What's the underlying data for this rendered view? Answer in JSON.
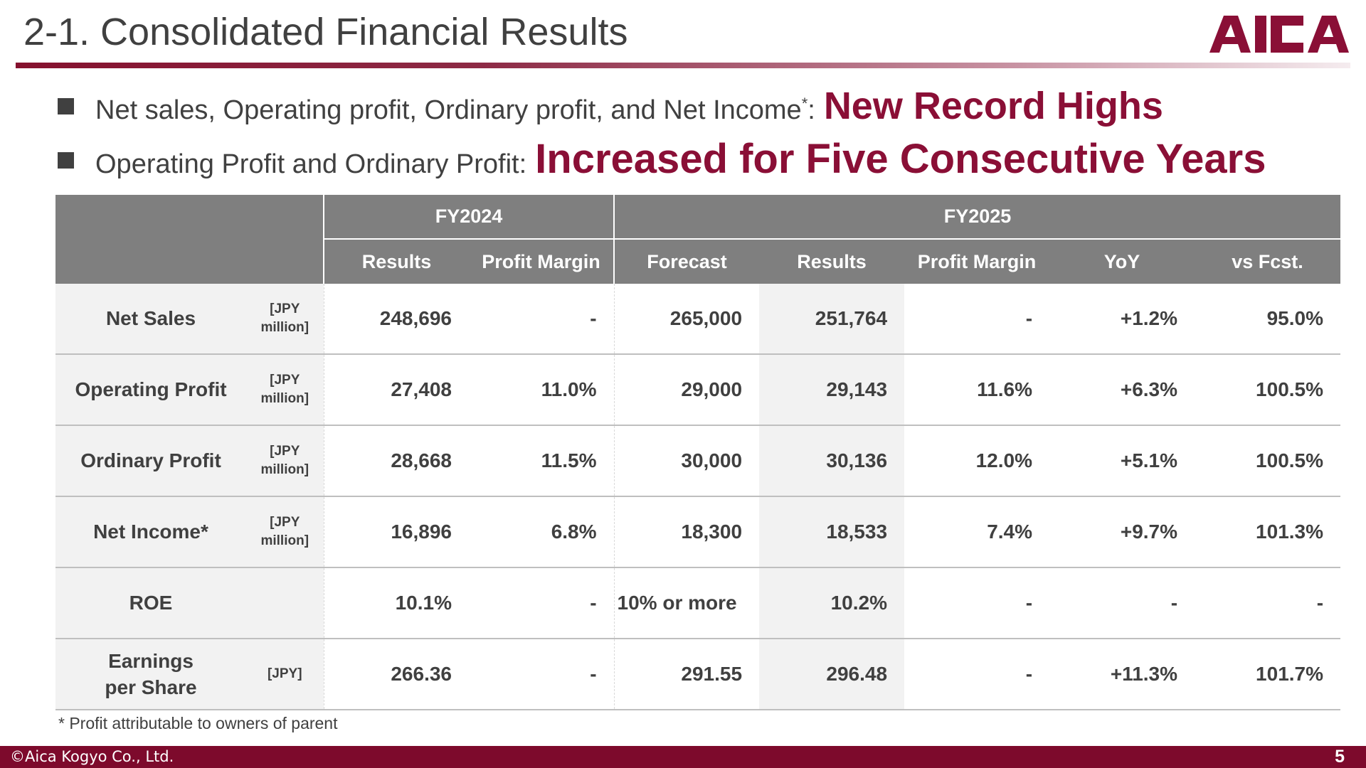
{
  "title": "2-1. Consolidated Financial Results",
  "logo_text": "AICA",
  "colors": {
    "accent": "#8a0f36",
    "header_bg": "#7f7f7f",
    "footer_bg": "#7d0a2c"
  },
  "bullets": [
    {
      "text": "Net sales, Operating profit, Ordinary profit, and Net Income",
      "sup": "*",
      "colon": ":",
      "highlight": "New Record Highs"
    },
    {
      "text": "Operating Profit and Ordinary Profit:",
      "highlight": "Increased for Five Consecutive Years"
    }
  ],
  "table": {
    "group_headers": [
      "FY2024",
      "FY2025"
    ],
    "columns": [
      "Results",
      "Profit Margin",
      "Forecast",
      "Results",
      "Profit Margin",
      "YoY",
      "vs Fcst."
    ],
    "rows": [
      {
        "label": "Net Sales",
        "unit": "[JPY million]",
        "values": [
          "248,696",
          "-",
          "265,000",
          "251,764",
          "-",
          "+1.2%",
          "95.0%"
        ]
      },
      {
        "label": "Operating Profit",
        "unit": "[JPY million]",
        "values": [
          "27,408",
          "11.0%",
          "29,000",
          "29,143",
          "11.6%",
          "+6.3%",
          "100.5%"
        ]
      },
      {
        "label": "Ordinary Profit",
        "unit": "[JPY million]",
        "values": [
          "28,668",
          "11.5%",
          "30,000",
          "30,136",
          "12.0%",
          "+5.1%",
          "100.5%"
        ]
      },
      {
        "label": "Net Income*",
        "unit": "[JPY million]",
        "values": [
          "16,896",
          "6.8%",
          "18,300",
          "18,533",
          "7.4%",
          "+9.7%",
          "101.3%"
        ]
      },
      {
        "label": "ROE",
        "unit": "",
        "values": [
          "10.1%",
          "-",
          "10% or more",
          "10.2%",
          "-",
          "-",
          "-"
        ]
      },
      {
        "label": "Earnings per Share",
        "unit": "[JPY]",
        "values": [
          "266.36",
          "-",
          "291.55",
          "296.48",
          "-",
          "+11.3%",
          "101.7%"
        ]
      }
    ]
  },
  "footnote": "* Profit attributable to owners of parent",
  "footer": {
    "copyright": "©Aica Kogyo Co., Ltd.",
    "page": "5"
  }
}
